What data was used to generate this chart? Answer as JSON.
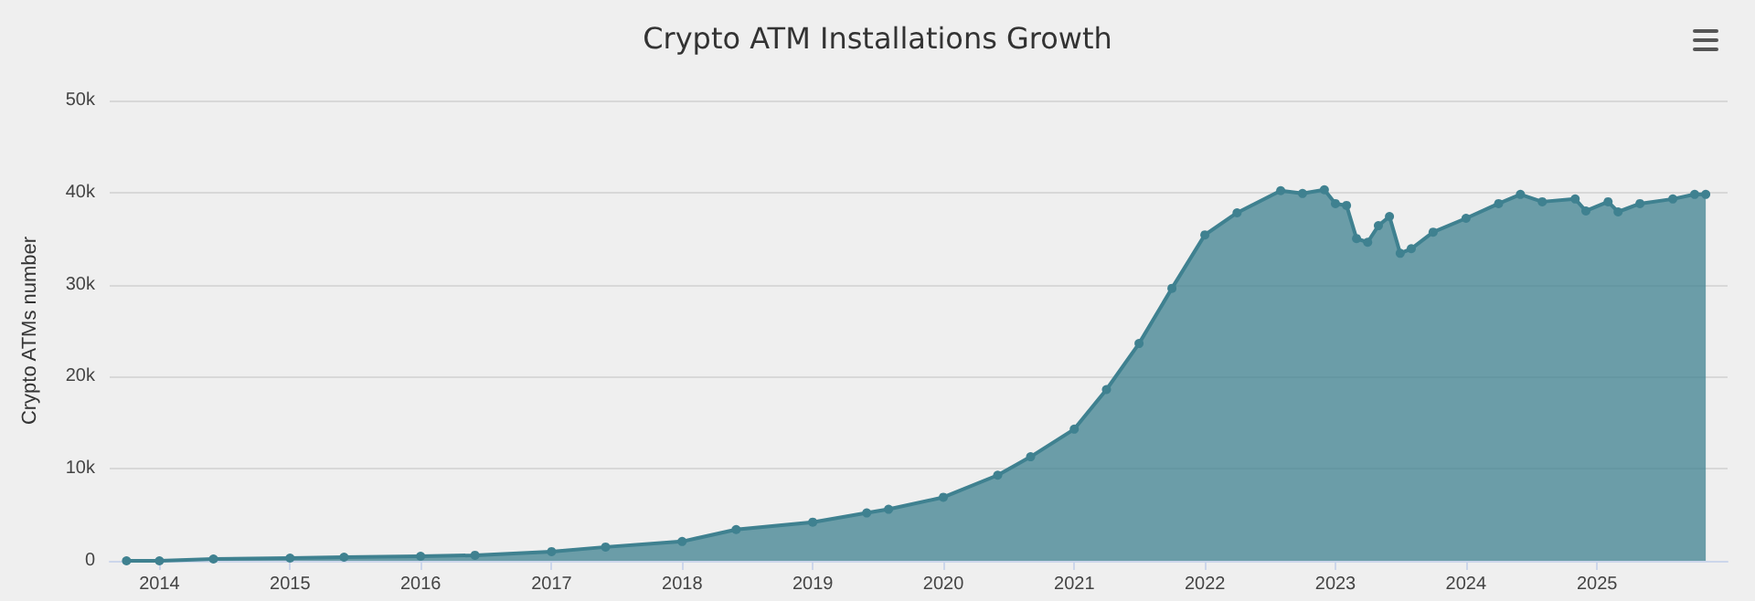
{
  "chart_data": {
    "type": "area",
    "title": "Crypto ATM Installations Growth",
    "ylabel": "Crypto ATMs number",
    "x": [
      "2013-10",
      "2014-01",
      "2014-06",
      "2015-01",
      "2015-06",
      "2016-01",
      "2016-06",
      "2017-01",
      "2017-06",
      "2018-01",
      "2018-06",
      "2019-01",
      "2019-06",
      "2019-08",
      "2020-01",
      "2020-06",
      "2020-09",
      "2021-01",
      "2021-04",
      "2021-07",
      "2021-10",
      "2022-01",
      "2022-04",
      "2022-08",
      "2022-10",
      "2022-12",
      "2023-01",
      "2023-02",
      "2023-03",
      "2023-04",
      "2023-05",
      "2023-06",
      "2023-07",
      "2023-08",
      "2023-10",
      "2024-01",
      "2024-04",
      "2024-06",
      "2024-08",
      "2024-11",
      "2024-12",
      "2025-02",
      "2025-03",
      "2025-05",
      "2025-08",
      "2025-10",
      "2025-11"
    ],
    "series": [
      {
        "color": "#3f8190",
        "values": [
          0,
          0,
          200,
          300,
          400,
          500,
          600,
          1000,
          1500,
          2100,
          3400,
          4200,
          5200,
          5600,
          6900,
          9300,
          11300,
          14300,
          18600,
          23600,
          29600,
          35400,
          37800,
          40200,
          39900,
          40300,
          38800,
          38600,
          35000,
          34600,
          36400,
          37400,
          33400,
          33900,
          35700,
          37200,
          38800,
          39800,
          39000,
          39300,
          38000,
          39000,
          37900,
          38800,
          39300,
          39800,
          39800
        ]
      }
    ],
    "xlim": [
      "2013-08-15",
      "2026-01-01"
    ],
    "xticks": [
      "2014",
      "2015",
      "2016",
      "2017",
      "2018",
      "2019",
      "2020",
      "2021",
      "2022",
      "2023",
      "2024",
      "2025"
    ],
    "ylim": [
      0,
      50000
    ],
    "yticks": [
      {
        "value": 0,
        "label": "0"
      },
      {
        "value": 10000,
        "label": "10k"
      },
      {
        "value": 20000,
        "label": "20k"
      },
      {
        "value": 30000,
        "label": "30k"
      },
      {
        "value": 40000,
        "label": "40k"
      },
      {
        "value": 50000,
        "label": "50k"
      }
    ],
    "grid": "y",
    "marker": "circle"
  }
}
